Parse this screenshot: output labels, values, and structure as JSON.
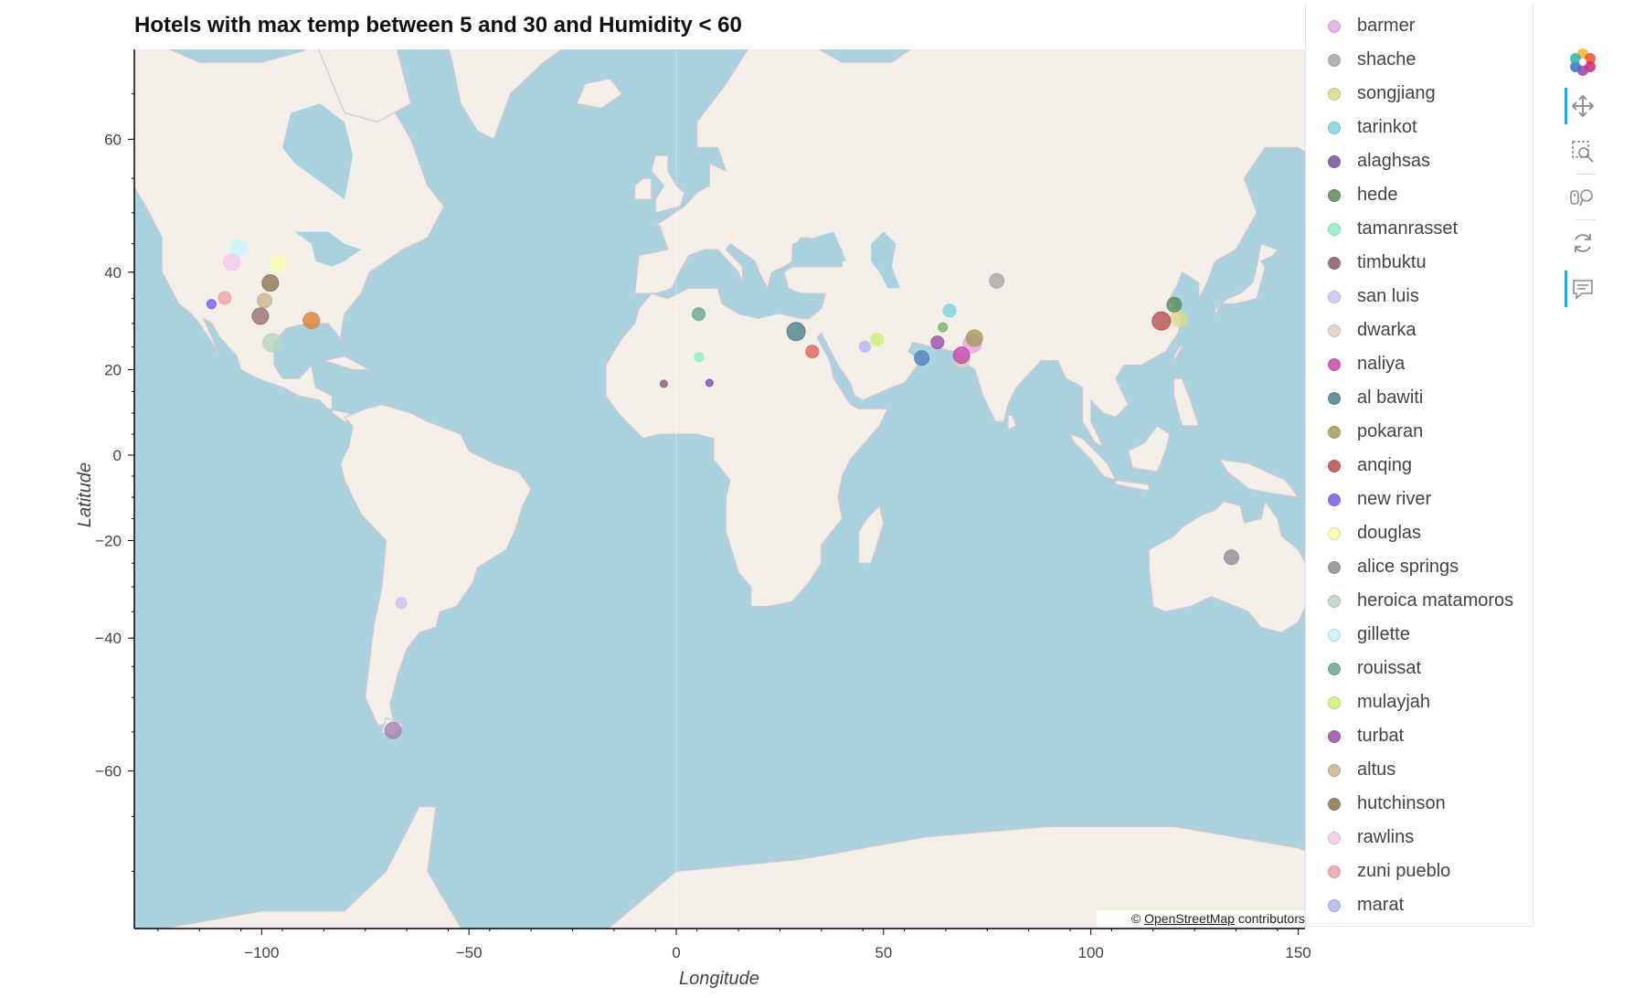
{
  "title": "Hotels with max temp between 5 and 30 and Humidity < 60",
  "attribution": {
    "prefix": "© ",
    "link_text": "OpenStreetMap",
    "suffix": " contributors"
  },
  "toolbar": {
    "logo": "bokeh-logo-icon",
    "tools": [
      {
        "name": "pan-icon",
        "active": true
      },
      {
        "name": "box-zoom-icon",
        "active": false
      },
      {
        "name": "wheel-zoom-icon",
        "active": false
      },
      {
        "name": "reset-icon",
        "active": false
      },
      {
        "name": "hover-icon",
        "active": true
      }
    ]
  },
  "colors": {
    "ocean": "#aad3df",
    "land": "#f2efe9",
    "border": "#c9a9c6"
  },
  "chart_data": {
    "type": "scatter",
    "title": "Hotels with max temp between 5 and 30 and Humidity < 60",
    "xlabel": "Longitude",
    "ylabel": "Latitude",
    "xlim": [
      -130,
      152
    ],
    "ylim": [
      -85,
      82
    ],
    "x_ticks": [
      -100,
      -50,
      0,
      50,
      100,
      150
    ],
    "x_tick_labels": [
      "−100",
      "−50",
      "0",
      "50",
      "100",
      "150"
    ],
    "y_ticks": [
      60,
      40,
      20,
      0,
      -20,
      -40,
      -60
    ],
    "y_tick_labels": [
      "60",
      "40",
      "20",
      "0",
      "−20",
      "−40",
      "−60"
    ],
    "y_scale": "mercator",
    "legend_position": "right",
    "series": [
      {
        "name": "barmer",
        "color": "#e7a6e1",
        "lon": 71.4,
        "lat": 25.7,
        "size": 10
      },
      {
        "name": "shache",
        "color": "#a8a8a8",
        "lon": 77.3,
        "lat": 38.4,
        "size": 8
      },
      {
        "name": "songjiang",
        "color": "#dbdb8d",
        "lon": 121.2,
        "lat": 31.0,
        "size": 9
      },
      {
        "name": "tarinkot",
        "color": "#7fd4e0",
        "lon": 65.9,
        "lat": 32.6,
        "size": 7
      },
      {
        "name": "alaghsas",
        "color": "#7a4fa8",
        "lon": 8.0,
        "lat": 17.0,
        "size": 4
      },
      {
        "name": "hede",
        "color": "#5a8a5a",
        "lon": 120.1,
        "lat": 33.8,
        "size": 8
      },
      {
        "name": "tamanrasset",
        "color": "#8ff0c4",
        "lon": 5.5,
        "lat": 22.8,
        "size": 5
      },
      {
        "name": "timbuktu",
        "color": "#8e5a7a",
        "lon": -3.0,
        "lat": 16.8,
        "size": 4
      },
      {
        "name": "san luis",
        "color": "#c6c6f0",
        "lon": -66.3,
        "lat": -33.3,
        "size": 6
      },
      {
        "name": "dwarka",
        "color": "#e6cfc3",
        "lon": 69.0,
        "lat": 22.2,
        "size": 8
      },
      {
        "name": "naliya",
        "color": "#c24aa8",
        "lon": 68.8,
        "lat": 23.2,
        "size": 9
      },
      {
        "name": "al bawiti",
        "color": "#4c7f8c",
        "lon": 28.9,
        "lat": 28.3,
        "size": 10
      },
      {
        "name": "pokaran",
        "color": "#a89a5c",
        "lon": 71.9,
        "lat": 26.9,
        "size": 9
      },
      {
        "name": "anqing",
        "color": "#b85050",
        "lon": 117.0,
        "lat": 30.5,
        "size": 10
      },
      {
        "name": "new river",
        "color": "#7a5ae6",
        "lon": -112.1,
        "lat": 33.9,
        "size": 5
      },
      {
        "name": "douglas",
        "color": "#fcfcb2",
        "lon": -96.0,
        "lat": 41.5,
        "size": 9
      },
      {
        "name": "alice springs",
        "color": "#8f8f99",
        "lon": 133.9,
        "lat": -23.7,
        "size": 8
      },
      {
        "name": "heroica matamoros",
        "color": "#b9d5c0",
        "lon": -97.5,
        "lat": 25.9,
        "size": 10
      },
      {
        "name": "gillette",
        "color": "#c8f2fa",
        "lon": -105.5,
        "lat": 44.3,
        "size": 9
      },
      {
        "name": "rouissat",
        "color": "#6aa595",
        "lon": 5.4,
        "lat": 31.9,
        "size": 7
      },
      {
        "name": "mulayjah",
        "color": "#cdf07a",
        "lon": 48.4,
        "lat": 26.6,
        "size": 7
      },
      {
        "name": "turbat",
        "color": "#9b4fb0",
        "lon": 63.0,
        "lat": 26.0,
        "size": 7
      },
      {
        "name": "altus",
        "color": "#c9b38d",
        "lon": -99.3,
        "lat": 34.6,
        "size": 8
      },
      {
        "name": "hutchinson",
        "color": "#8c7450",
        "lon": -97.9,
        "lat": 38.0,
        "size": 9
      },
      {
        "name": "rawlins",
        "color": "#f5c9ec",
        "lon": -107.2,
        "lat": 41.8,
        "size": 9
      },
      {
        "name": "zuni pueblo",
        "color": "#eea3a6",
        "lon": -108.9,
        "lat": 35.1,
        "size": 7
      },
      {
        "name": "marat",
        "color": "#b1b7f1",
        "lon": 45.5,
        "lat": 25.1,
        "size": 6
      },
      {
        "name": "",
        "color": "#4d85b8",
        "lon": 59.2,
        "lat": 22.6,
        "size": 8
      },
      {
        "name": "",
        "color": "#e0813a",
        "lon": -88.0,
        "lat": 30.6,
        "size": 9
      },
      {
        "name": "",
        "color": "#9a7070",
        "lon": -100.3,
        "lat": 31.5,
        "size": 9
      },
      {
        "name": "",
        "color": "#e06060",
        "lon": 32.8,
        "lat": 24.0,
        "size": 7
      },
      {
        "name": "",
        "color": "#7ab36a",
        "lon": 64.3,
        "lat": 29.2,
        "size": 5
      },
      {
        "name": "",
        "color": "#a282b8",
        "lon": -68.3,
        "lat": -54.8,
        "size": 9
      }
    ]
  }
}
